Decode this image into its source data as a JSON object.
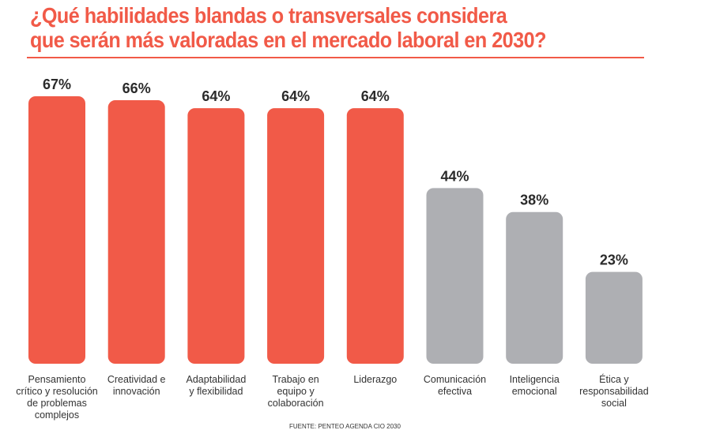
{
  "title": {
    "line1": "¿Qué habilidades blandas o transversales considera",
    "line2": "que serán más valoradas en el mercado laboral en 2030?"
  },
  "source": "FUENTE: PENTEO AGENDA CIO 2030",
  "colors": {
    "accent": "#f15a48",
    "highlight": "#f15a48",
    "muted": "#aeafb3"
  },
  "chart_data": {
    "type": "bar",
    "title": "¿Qué habilidades blandas o transversales considera que serán más valoradas en el mercado laboral en 2030?",
    "categories": [
      "Pensamiento crítico y resolución de problemas complejos",
      "Creatividad e innovación",
      "Adaptabilidad y flexibilidad",
      "Trabajo en equipo y colaboración",
      "Liderazgo",
      "Comunicación efectiva",
      "Inteligencia emocional",
      "Ética y responsabilidad social"
    ],
    "category_lines": [
      [
        "Pensamiento",
        "crítico y resolución",
        "de problemas",
        "complejos"
      ],
      [
        "Creatividad e",
        "innovación"
      ],
      [
        "Adaptabilidad",
        "y flexibilidad"
      ],
      [
        "Trabajo en",
        "equipo y",
        "colaboración"
      ],
      [
        "Liderazgo"
      ],
      [
        "Comunicación",
        "efectiva"
      ],
      [
        "Inteligencia",
        "emocional"
      ],
      [
        "Ética y",
        "responsabilidad",
        "social"
      ]
    ],
    "values": [
      67,
      66,
      64,
      64,
      64,
      44,
      38,
      23
    ],
    "value_labels": [
      "67%",
      "66%",
      "64%",
      "64%",
      "64%",
      "44%",
      "38%",
      "23%"
    ],
    "highlighted": [
      true,
      true,
      true,
      true,
      true,
      false,
      false,
      false
    ],
    "ylim": [
      0,
      67
    ],
    "xlabel": "",
    "ylabel": "",
    "grid": false
  }
}
